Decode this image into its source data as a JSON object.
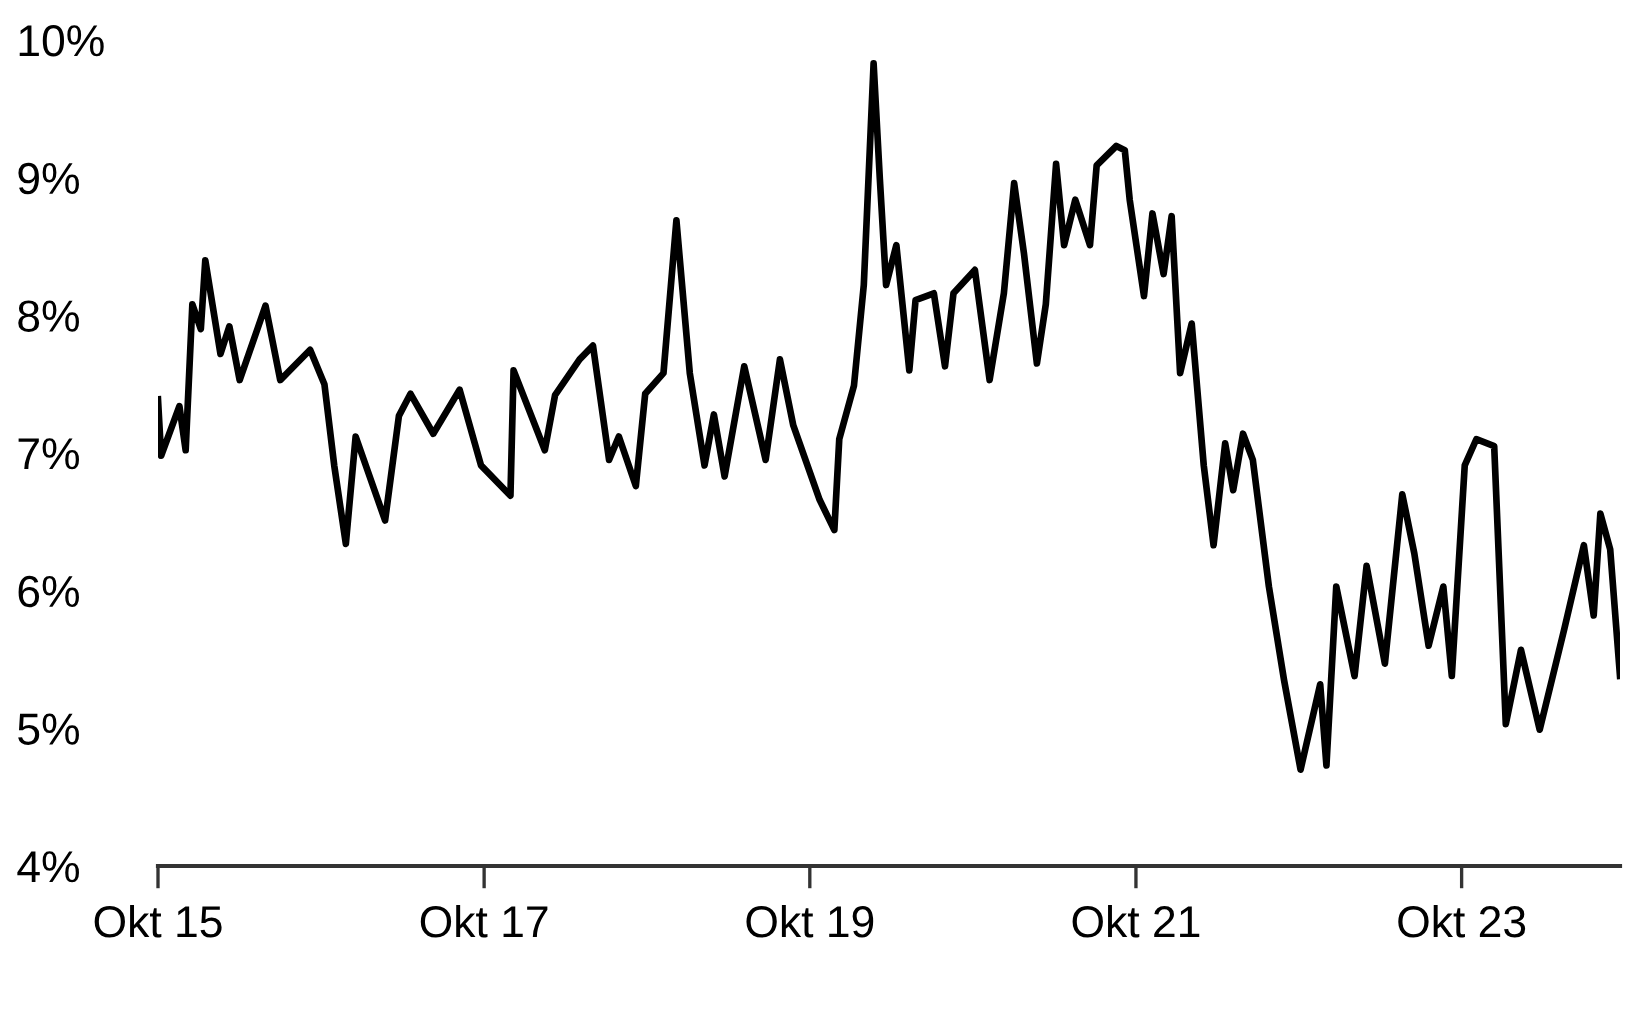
{
  "chart_data": {
    "type": "line",
    "x": [
      "2015-10-01",
      "2015-10-08",
      "2015-11-18",
      "2015-12-02",
      "2015-12-17",
      "2016-01-05",
      "2016-01-15",
      "2016-02-18",
      "2016-03-09",
      "2016-04-01",
      "2016-05-29",
      "2016-07-01",
      "2016-09-06",
      "2016-10-08",
      "2016-10-30",
      "2016-11-25",
      "2016-12-17",
      "2017-02-21",
      "2017-03-24",
      "2017-04-19",
      "2017-06-09",
      "2017-08-07",
      "2017-09-24",
      "2017-11-29",
      "2017-12-06",
      "2018-02-14",
      "2018-03-09",
      "2018-05-03",
      "2018-06-02",
      "2018-07-08",
      "2018-07-30",
      "2018-09-06",
      "2018-09-27",
      "2018-11-07",
      "2018-12-06",
      "2019-01-05",
      "2019-02-07",
      "2019-02-28",
      "2019-03-24",
      "2019-05-07",
      "2019-06-24",
      "2019-07-26",
      "2019-08-25",
      "2019-10-23",
      "2019-11-25",
      "2019-12-06",
      "2020-01-08",
      "2020-01-30",
      "2020-02-21",
      "2020-03-06",
      "2020-03-20",
      "2020-04-12",
      "2020-05-11",
      "2020-05-25",
      "2020-07-05",
      "2020-07-30",
      "2020-08-18",
      "2020-10-05",
      "2020-11-07",
      "2020-12-09",
      "2021-01-01",
      "2021-01-23",
      "2021-02-21",
      "2021-03-13",
      "2021-04-05",
      "2021-04-23",
      "2021-05-18",
      "2021-06-20",
      "2021-07-05",
      "2021-08-18",
      "2021-09-06",
      "2021-09-17",
      "2021-10-19",
      "2021-11-07",
      "2021-12-02",
      "2021-12-20",
      "2022-01-08",
      "2022-02-03",
      "2022-03-02",
      "2022-03-24",
      "2022-04-19",
      "2022-05-07",
      "2022-05-29",
      "2022-06-20",
      "2022-07-26",
      "2022-08-29",
      "2022-10-05",
      "2022-11-18",
      "2022-12-02",
      "2022-12-24",
      "2023-02-03",
      "2023-03-02",
      "2023-04-12",
      "2023-05-21",
      "2023-06-17",
      "2023-07-19",
      "2023-08-21",
      "2023-09-09",
      "2023-10-08",
      "2023-11-03",
      "2023-12-13",
      "2024-01-08",
      "2024-02-11",
      "2024-03-24",
      "2024-05-18",
      "2024-07-01",
      "2024-07-23",
      "2024-08-07",
      "2024-08-29",
      "2024-09-20"
    ],
    "series": [
      {
        "color": "#000000",
        "values": [
          7.39,
          6.98,
          7.34,
          7.02,
          8.08,
          7.9,
          8.4,
          7.72,
          7.92,
          7.53,
          8.07,
          7.53,
          7.75,
          7.5,
          6.91,
          6.34,
          7.12,
          6.51,
          7.27,
          7.43,
          7.14,
          7.46,
          6.91,
          6.69,
          7.6,
          7.02,
          7.42,
          7.68,
          7.78,
          6.95,
          7.12,
          6.76,
          7.43,
          7.58,
          8.69,
          7.58,
          6.91,
          7.28,
          6.83,
          7.63,
          6.95,
          7.68,
          7.2,
          6.66,
          6.44,
          7.1,
          7.49,
          8.22,
          9.83,
          8.99,
          8.22,
          8.51,
          7.6,
          8.11,
          8.16,
          7.63,
          8.16,
          8.33,
          7.53,
          8.16,
          8.96,
          8.45,
          7.65,
          8.08,
          9.1,
          8.51,
          8.84,
          8.51,
          9.09,
          9.23,
          9.2,
          8.84,
          8.14,
          8.74,
          8.3,
          8.72,
          7.58,
          7.94,
          6.91,
          6.33,
          7.07,
          6.73,
          7.14,
          6.95,
          6.03,
          5.35,
          4.7,
          5.32,
          4.73,
          6.03,
          5.38,
          6.18,
          5.47,
          6.7,
          6.27,
          5.6,
          6.03,
          5.38,
          6.91,
          7.1,
          7.05,
          5.03,
          5.57,
          4.99,
          5.72,
          6.33,
          5.82,
          6.56,
          6.3,
          5.38
        ]
      }
    ],
    "xlim": [
      "2015-10-01",
      "2024-09-20"
    ],
    "xticks": [
      {
        "value": "2015-10-01",
        "label": "Okt 15"
      },
      {
        "value": "2017-10-01",
        "label": "Okt 17"
      },
      {
        "value": "2019-10-01",
        "label": "Okt 19"
      },
      {
        "value": "2021-10-01",
        "label": "Okt 21"
      },
      {
        "value": "2023-10-01",
        "label": "Okt 23"
      }
    ],
    "ylim": [
      4,
      10
    ],
    "yticks": [
      {
        "value": 4,
        "label": "4%"
      },
      {
        "value": 5,
        "label": "5%"
      },
      {
        "value": 6,
        "label": "6%"
      },
      {
        "value": 7,
        "label": "7%"
      },
      {
        "value": 8,
        "label": "8%"
      },
      {
        "value": 9,
        "label": "9%"
      },
      {
        "value": 10,
        "label": "10%"
      }
    ],
    "grid": false,
    "legend": false,
    "line_style": "solid"
  }
}
